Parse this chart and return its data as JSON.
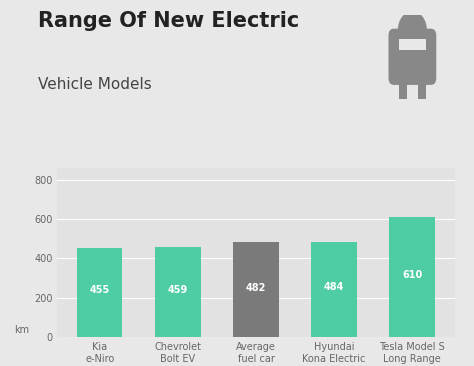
{
  "title_line1": "Range Of New Electric",
  "title_line2": "Vehicle Models",
  "categories": [
    "Kia\ne-Niro",
    "Chevrolet\nBolt EV",
    "Average\nfuel car",
    "Hyundai\nKona Electric",
    "Tesla Model S\nLong Range"
  ],
  "values": [
    455,
    459,
    482,
    484,
    610
  ],
  "bar_colors": [
    "#4ecda4",
    "#4ecda4",
    "#7a7a7a",
    "#4ecda4",
    "#4ecda4"
  ],
  "value_labels": [
    "455",
    "459",
    "482",
    "484",
    "610"
  ],
  "ylabel": "km",
  "ylim": [
    0,
    860
  ],
  "yticks": [
    0,
    200,
    400,
    600,
    800
  ],
  "background_color": "#e8e8e8",
  "plot_bg_color": "#e2e2e2",
  "title_fontsize": 15,
  "subtitle_fontsize": 11,
  "tick_label_fontsize": 7,
  "value_label_fontsize": 7,
  "bar_label_color": "#ffffff",
  "title_color": "#222222",
  "subtitle_color": "#444444",
  "tick_color": "#666666",
  "grid_color": "#ffffff",
  "icon_color": "#888888"
}
